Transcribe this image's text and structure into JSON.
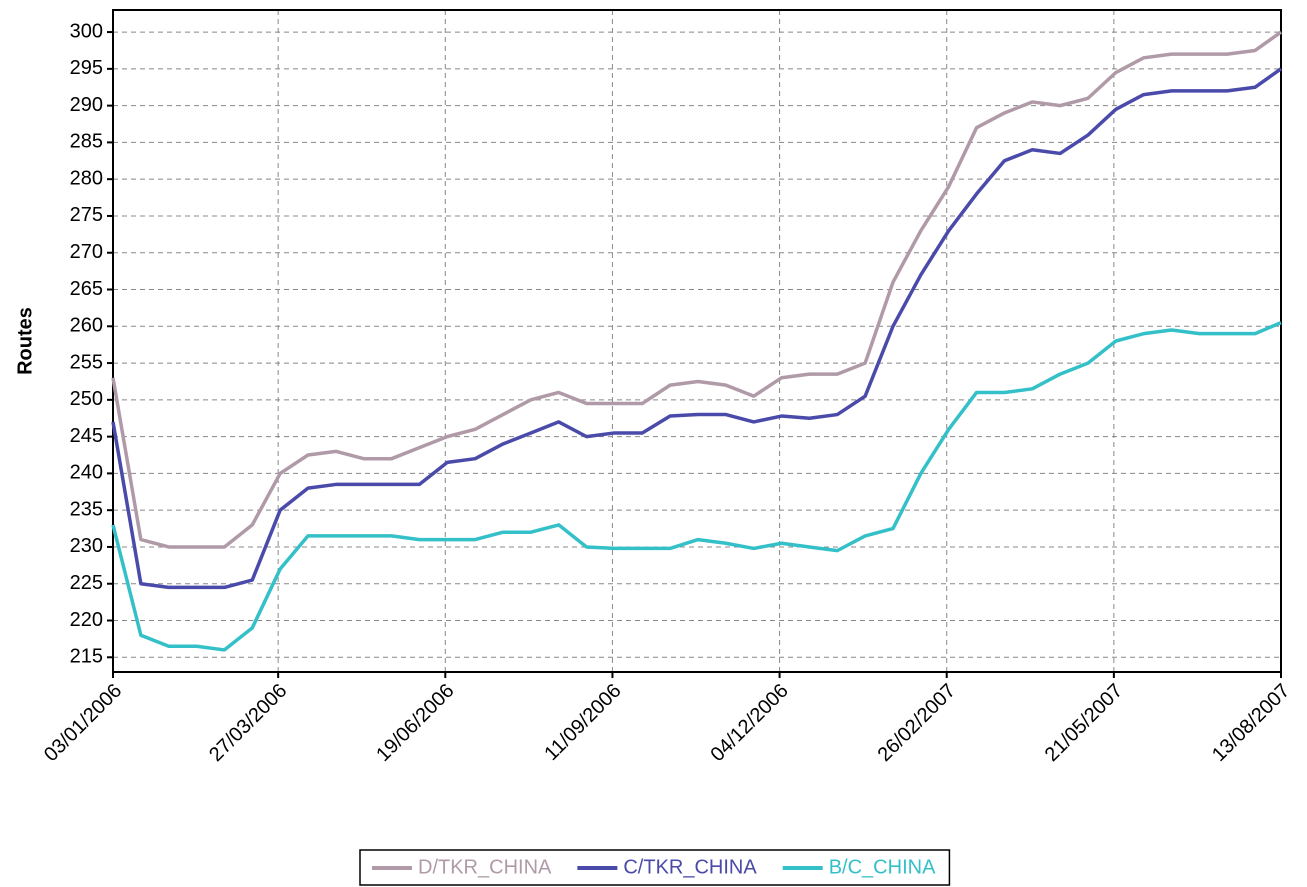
{
  "chart_data": {
    "type": "line",
    "y_label": "Routes",
    "x": [
      "03/01/2006",
      "17/01/2006",
      "31/01/2006",
      "14/02/2006",
      "28/02/2006",
      "14/03/2006",
      "28/03/2006",
      "11/04/2006",
      "25/04/2006",
      "09/05/2006",
      "23/05/2006",
      "06/06/2006",
      "20/06/2006",
      "04/07/2006",
      "18/07/2006",
      "01/08/2006",
      "15/08/2006",
      "29/08/2006",
      "12/09/2006",
      "26/09/2006",
      "10/10/2006",
      "24/10/2006",
      "07/11/2006",
      "21/11/2006",
      "05/12/2006",
      "19/12/2006",
      "02/01/2007",
      "16/01/2007",
      "30/01/2007",
      "13/02/2007",
      "27/02/2007",
      "13/03/2007",
      "27/03/2007",
      "10/04/2007",
      "24/04/2007",
      "08/05/2007",
      "22/05/2007",
      "05/06/2007",
      "19/06/2007",
      "03/07/2007",
      "17/07/2007",
      "31/07/2007",
      "13/08/2007"
    ],
    "series": [
      {
        "name": "D/TKR_CHINA",
        "color": "#b09aa8",
        "values": [
          253,
          231,
          230,
          230,
          230,
          233,
          240,
          242.5,
          243,
          242,
          242,
          243.5,
          245,
          246,
          248,
          250,
          251,
          249.5,
          249.5,
          249.5,
          252,
          252.5,
          252,
          250.5,
          253,
          253.5,
          253.5,
          255,
          266,
          273,
          279,
          287,
          289,
          290.5,
          290,
          291,
          294.5,
          296.5,
          297,
          297,
          297,
          297.5,
          300
        ]
      },
      {
        "name": "C/TKR_CHINA",
        "color": "#4a4aaa",
        "values": [
          247,
          225,
          224.5,
          224.5,
          224.5,
          225.5,
          235,
          238,
          238.5,
          238.5,
          238.5,
          238.5,
          241.5,
          242,
          244,
          245.5,
          247,
          245,
          245.5,
          245.5,
          247.8,
          248,
          248,
          247,
          247.8,
          247.5,
          248,
          250.5,
          260,
          267,
          273,
          278,
          282.5,
          284,
          283.5,
          286,
          289.5,
          291.5,
          292,
          292,
          292,
          292.5,
          295
        ]
      },
      {
        "name": "B/C_CHINA",
        "color": "#33c0c8",
        "values": [
          233,
          218,
          216.5,
          216.5,
          216,
          219,
          227,
          231.5,
          231.5,
          231.5,
          231.5,
          231,
          231,
          231,
          232,
          232,
          233,
          230,
          229.8,
          229.8,
          229.8,
          231,
          230.5,
          229.8,
          230.5,
          230,
          229.5,
          231.5,
          232.5,
          240,
          246,
          251,
          251,
          251.5,
          253.5,
          255,
          258,
          259,
          259.5,
          259,
          259,
          259,
          260.5
        ]
      }
    ],
    "xlim": [
      "03/01/2006",
      "13/08/2007"
    ],
    "xticks": [
      "03/01/2006",
      "27/03/2006",
      "19/06/2006",
      "11/09/2006",
      "04/12/2006",
      "26/02/2007",
      "21/05/2007",
      "13/08/2007"
    ],
    "ylim": [
      213,
      303
    ],
    "yticks": [
      215,
      220,
      225,
      230,
      235,
      240,
      245,
      250,
      255,
      260,
      265,
      270,
      275,
      280,
      285,
      290,
      295,
      300
    ],
    "grid": true,
    "legend": "bottom"
  }
}
